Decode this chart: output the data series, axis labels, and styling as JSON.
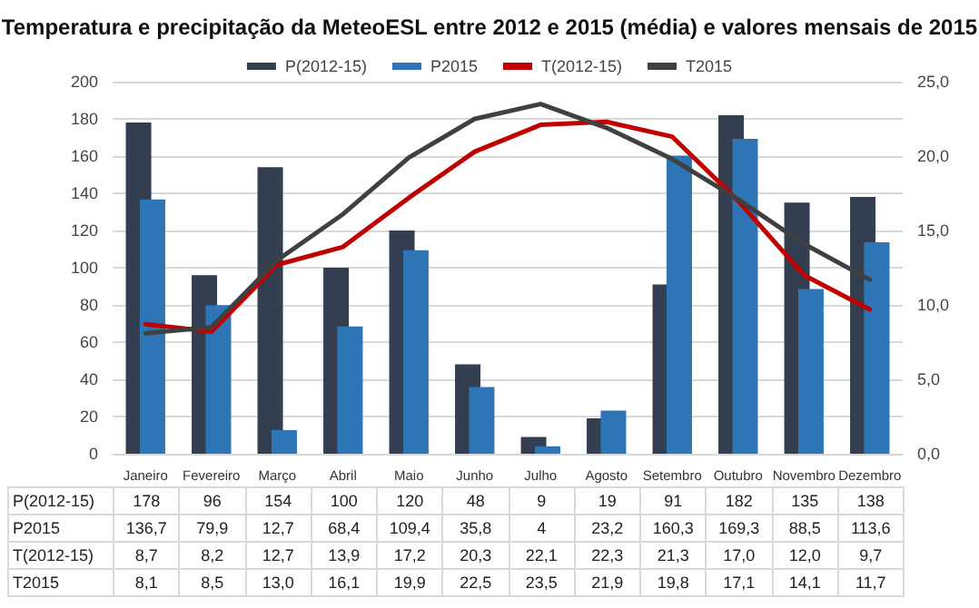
{
  "chart_data": {
    "type": "bar",
    "title": "Temperatura e precipitação da MeteoESL entre 2012 e 2015 (média) e valores mensais de 2015",
    "categories": [
      "Janeiro",
      "Fevereiro",
      "Março",
      "Abril",
      "Maio",
      "Junho",
      "Julho",
      "Agosto",
      "Setembro",
      "Outubro",
      "Novembro",
      "Dezembro"
    ],
    "series": [
      {
        "name": "P(2012-15)",
        "color": "#333f50",
        "values": [
          178,
          96,
          154,
          100,
          120,
          48,
          9,
          19,
          91,
          182,
          135,
          138
        ],
        "value_labels": [
          "178",
          "96",
          "154",
          "100",
          "120",
          "48",
          "9",
          "19",
          "91",
          "182",
          "135",
          "138"
        ]
      },
      {
        "name": "P2015",
        "color": "#2e75b6",
        "values": [
          136.7,
          79.9,
          12.7,
          68.4,
          109.4,
          35.8,
          4,
          23.2,
          160.3,
          169.3,
          88.5,
          113.6
        ],
        "value_labels": [
          "136,7",
          "79,9",
          "12,7",
          "68,4",
          "109,4",
          "35,8",
          "4",
          "23,2",
          "160,3",
          "169,3",
          "88,5",
          "113,6"
        ]
      },
      {
        "name": "T(2012-15)",
        "type": "line",
        "axis": "y2",
        "color": "#c00000",
        "values": [
          8.7,
          8.2,
          12.7,
          13.9,
          17.2,
          20.3,
          22.1,
          22.3,
          21.3,
          17.0,
          12.0,
          9.7
        ],
        "value_labels": [
          "8,7",
          "8,2",
          "12,7",
          "13,9",
          "17,2",
          "20,3",
          "22,1",
          "22,3",
          "21,3",
          "17,0",
          "12,0",
          "9,7"
        ]
      },
      {
        "name": "T2015",
        "type": "line",
        "axis": "y2",
        "color": "#404040",
        "values": [
          8.1,
          8.5,
          13.0,
          16.1,
          19.9,
          22.5,
          23.5,
          21.9,
          19.8,
          17.1,
          14.1,
          11.7
        ],
        "value_labels": [
          "8,1",
          "8,5",
          "13,0",
          "16,1",
          "19,9",
          "22,5",
          "23,5",
          "21,9",
          "19,8",
          "17,1",
          "14,1",
          "11,7"
        ]
      }
    ],
    "ylim": [
      0,
      200
    ],
    "yticks": [
      0,
      20,
      40,
      60,
      80,
      100,
      120,
      140,
      160,
      180,
      200
    ],
    "y2lim": [
      0,
      25
    ],
    "y2ticks": [
      {
        "value": 0,
        "label": "0,0"
      },
      {
        "value": 5,
        "label": "5,0"
      },
      {
        "value": 10,
        "label": "10,0"
      },
      {
        "value": 15,
        "label": "15,0"
      },
      {
        "value": 20,
        "label": "20,0"
      },
      {
        "value": 25,
        "label": "25,0"
      }
    ],
    "grid": "y",
    "legend": "top",
    "marker": "none",
    "line_style": "solid"
  }
}
